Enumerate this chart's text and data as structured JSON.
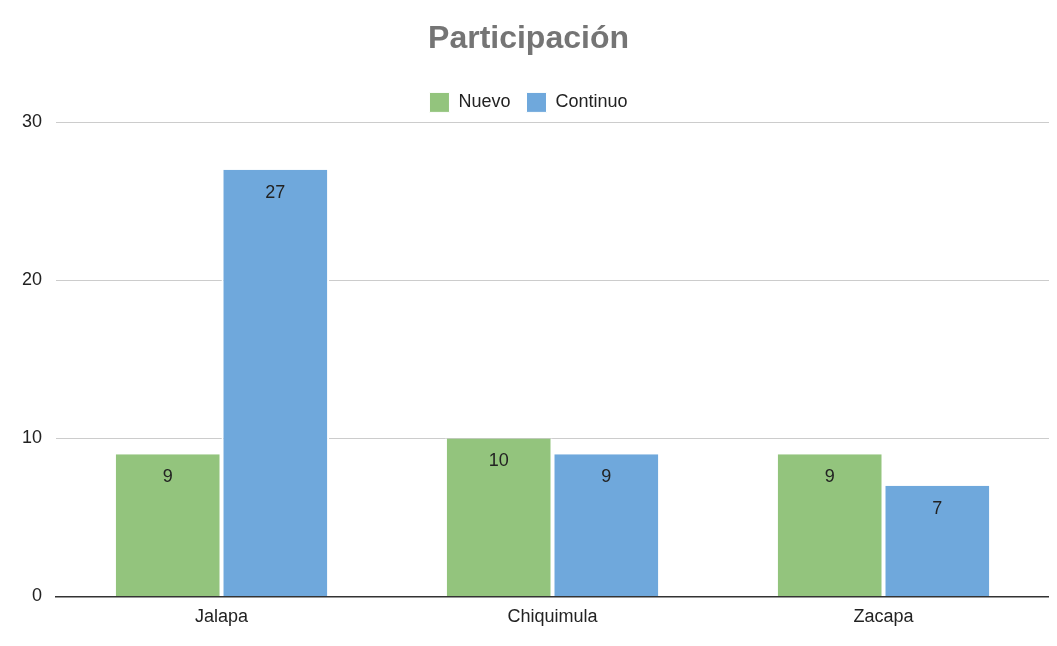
{
  "chart_data": {
    "type": "bar",
    "title": "Participación",
    "categories": [
      "Jalapa",
      "Chiquimula",
      "Zacapa"
    ],
    "series": [
      {
        "name": "Nuevo",
        "color": "#93c47d",
        "values": [
          9,
          10,
          9
        ]
      },
      {
        "name": "Continuo",
        "color": "#6fa8dc",
        "values": [
          27,
          9,
          7
        ]
      }
    ],
    "ylim": [
      0,
      30
    ],
    "yticks": [
      0,
      10,
      20,
      30
    ],
    "grid": "y",
    "legend": "top",
    "data_labels": true
  }
}
